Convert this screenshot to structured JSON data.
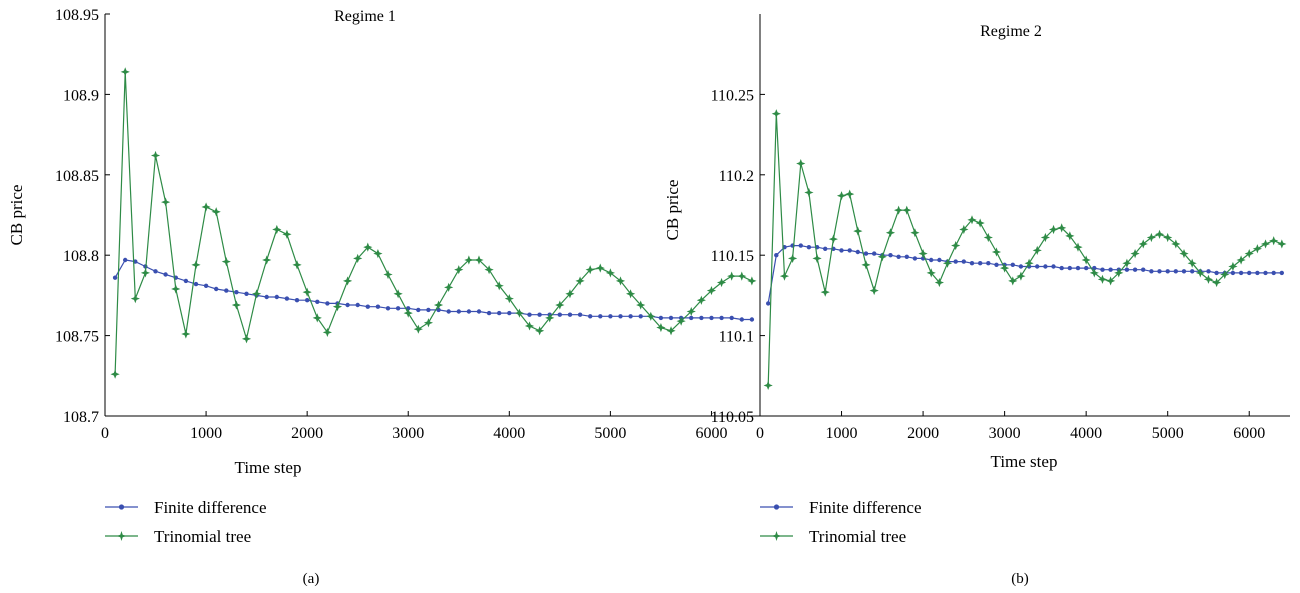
{
  "figure": {
    "panels": [
      {
        "caption": "(a)",
        "chart_data": {
          "type": "line",
          "title": "Regime 1",
          "xlabel": "Time step",
          "ylabel": "CB price",
          "xlim": [
            0,
            6500
          ],
          "ylim": [
            108.7,
            108.95
          ],
          "xticks": [
            0,
            1000,
            2000,
            3000,
            4000,
            5000,
            6000
          ],
          "yticks": [
            108.7,
            108.75,
            108.8,
            108.85,
            108.9,
            108.95
          ],
          "ytick_labels": [
            "108.7",
            "108.75",
            "108.8",
            "108.85",
            "108.9",
            "108.95"
          ],
          "legend_position": "below-left",
          "series": [
            {
              "name": "Finite difference",
              "color": "#3a4fb0",
              "marker": "dot",
              "x": [
                100,
                200,
                300,
                400,
                500,
                600,
                700,
                800,
                900,
                1000,
                1100,
                1200,
                1300,
                1400,
                1500,
                1600,
                1700,
                1800,
                1900,
                2000,
                2100,
                2200,
                2300,
                2400,
                2500,
                2600,
                2700,
                2800,
                2900,
                3000,
                3100,
                3200,
                3300,
                3400,
                3500,
                3600,
                3700,
                3800,
                3900,
                4000,
                4100,
                4200,
                4300,
                4400,
                4500,
                4600,
                4700,
                4800,
                4900,
                5000,
                5100,
                5200,
                5300,
                5400,
                5500,
                5600,
                5700,
                5800,
                5900,
                6000,
                6100,
                6200,
                6300,
                6400
              ],
              "y": [
                108.786,
                108.797,
                108.796,
                108.793,
                108.79,
                108.788,
                108.786,
                108.784,
                108.782,
                108.781,
                108.779,
                108.778,
                108.777,
                108.776,
                108.775,
                108.774,
                108.774,
                108.773,
                108.772,
                108.772,
                108.771,
                108.77,
                108.77,
                108.769,
                108.769,
                108.768,
                108.768,
                108.767,
                108.767,
                108.767,
                108.766,
                108.766,
                108.766,
                108.765,
                108.765,
                108.765,
                108.765,
                108.764,
                108.764,
                108.764,
                108.764,
                108.763,
                108.763,
                108.763,
                108.763,
                108.763,
                108.763,
                108.762,
                108.762,
                108.762,
                108.762,
                108.762,
                108.762,
                108.762,
                108.761,
                108.761,
                108.761,
                108.761,
                108.761,
                108.761,
                108.761,
                108.761,
                108.76,
                108.76
              ]
            },
            {
              "name": "Trinomial tree",
              "color": "#2e8b46",
              "marker": "star",
              "x": [
                100,
                200,
                300,
                400,
                500,
                600,
                700,
                800,
                900,
                1000,
                1100,
                1200,
                1300,
                1400,
                1500,
                1600,
                1700,
                1800,
                1900,
                2000,
                2100,
                2200,
                2300,
                2400,
                2500,
                2600,
                2700,
                2800,
                2900,
                3000,
                3100,
                3200,
                3300,
                3400,
                3500,
                3600,
                3700,
                3800,
                3900,
                4000,
                4100,
                4200,
                4300,
                4400,
                4500,
                4600,
                4700,
                4800,
                4900,
                5000,
                5100,
                5200,
                5300,
                5400,
                5500,
                5600,
                5700,
                5800,
                5900,
                6000,
                6100,
                6200,
                6300,
                6400
              ],
              "y": [
                108.726,
                108.914,
                108.773,
                108.789,
                108.862,
                108.833,
                108.779,
                108.751,
                108.794,
                108.83,
                108.827,
                108.796,
                108.769,
                108.748,
                108.776,
                108.797,
                108.816,
                108.813,
                108.794,
                108.777,
                108.761,
                108.752,
                108.768,
                108.784,
                108.798,
                108.805,
                108.801,
                108.788,
                108.776,
                108.764,
                108.754,
                108.758,
                108.769,
                108.78,
                108.791,
                108.797,
                108.797,
                108.791,
                108.781,
                108.773,
                108.764,
                108.756,
                108.753,
                108.761,
                108.769,
                108.776,
                108.784,
                108.791,
                108.792,
                108.789,
                108.784,
                108.776,
                108.769,
                108.762,
                108.755,
                108.753,
                108.759,
                108.765,
                108.772,
                108.778,
                108.783,
                108.787,
                108.787,
                108.784
              ]
            }
          ]
        }
      },
      {
        "caption": "(b)",
        "chart_data": {
          "type": "line",
          "title": "Regime 2",
          "xlabel": "Time step",
          "ylabel": "CB price",
          "xlim": [
            0,
            6500
          ],
          "ylim": [
            110.05,
            110.3
          ],
          "xticks": [
            0,
            1000,
            2000,
            3000,
            4000,
            5000,
            6000
          ],
          "yticks": [
            110.05,
            110.1,
            110.15,
            110.2,
            110.25
          ],
          "ytick_labels": [
            "110.05",
            "110.1",
            "110.15",
            "110.2",
            "110.25"
          ],
          "legend_position": "below-left",
          "series": [
            {
              "name": "Finite difference",
              "color": "#3a4fb0",
              "marker": "dot",
              "x": [
                100,
                200,
                300,
                400,
                500,
                600,
                700,
                800,
                900,
                1000,
                1100,
                1200,
                1300,
                1400,
                1500,
                1600,
                1700,
                1800,
                1900,
                2000,
                2100,
                2200,
                2300,
                2400,
                2500,
                2600,
                2700,
                2800,
                2900,
                3000,
                3100,
                3200,
                3300,
                3400,
                3500,
                3600,
                3700,
                3800,
                3900,
                4000,
                4100,
                4200,
                4300,
                4400,
                4500,
                4600,
                4700,
                4800,
                4900,
                5000,
                5100,
                5200,
                5300,
                5400,
                5500,
                5600,
                5700,
                5800,
                5900,
                6000,
                6100,
                6200,
                6300,
                6400
              ],
              "y": [
                110.12,
                110.15,
                110.155,
                110.156,
                110.156,
                110.155,
                110.155,
                110.154,
                110.154,
                110.153,
                110.153,
                110.152,
                110.151,
                110.151,
                110.15,
                110.15,
                110.149,
                110.149,
                110.148,
                110.148,
                110.147,
                110.147,
                110.146,
                110.146,
                110.146,
                110.145,
                110.145,
                110.145,
                110.144,
                110.144,
                110.144,
                110.143,
                110.143,
                110.143,
                110.143,
                110.143,
                110.142,
                110.142,
                110.142,
                110.142,
                110.142,
                110.141,
                110.141,
                110.141,
                110.141,
                110.141,
                110.141,
                110.14,
                110.14,
                110.14,
                110.14,
                110.14,
                110.14,
                110.14,
                110.14,
                110.139,
                110.139,
                110.139,
                110.139,
                110.139,
                110.139,
                110.139,
                110.139,
                110.139
              ]
            },
            {
              "name": "Trinomial tree",
              "color": "#2e8b46",
              "marker": "star",
              "x": [
                100,
                200,
                300,
                400,
                500,
                600,
                700,
                800,
                900,
                1000,
                1100,
                1200,
                1300,
                1400,
                1500,
                1600,
                1700,
                1800,
                1900,
                2000,
                2100,
                2200,
                2300,
                2400,
                2500,
                2600,
                2700,
                2800,
                2900,
                3000,
                3100,
                3200,
                3300,
                3400,
                3500,
                3600,
                3700,
                3800,
                3900,
                4000,
                4100,
                4200,
                4300,
                4400,
                4500,
                4600,
                4700,
                4800,
                4900,
                5000,
                5100,
                5200,
                5300,
                5400,
                5500,
                5600,
                5700,
                5800,
                5900,
                6000,
                6100,
                6200,
                6300,
                6400
              ],
              "y": [
                110.069,
                110.238,
                110.137,
                110.148,
                110.207,
                110.189,
                110.148,
                110.127,
                110.16,
                110.187,
                110.188,
                110.165,
                110.144,
                110.128,
                110.149,
                110.164,
                110.178,
                110.178,
                110.164,
                110.151,
                110.139,
                110.133,
                110.145,
                110.156,
                110.166,
                110.172,
                110.17,
                110.161,
                110.152,
                110.142,
                110.134,
                110.137,
                110.145,
                110.153,
                110.161,
                110.166,
                110.167,
                110.162,
                110.155,
                110.147,
                110.139,
                110.135,
                110.134,
                110.139,
                110.145,
                110.151,
                110.157,
                110.161,
                110.163,
                110.161,
                110.157,
                110.151,
                110.145,
                110.139,
                110.135,
                110.133,
                110.138,
                110.143,
                110.147,
                110.151,
                110.154,
                110.157,
                110.159,
                110.157
              ]
            }
          ]
        }
      }
    ]
  }
}
